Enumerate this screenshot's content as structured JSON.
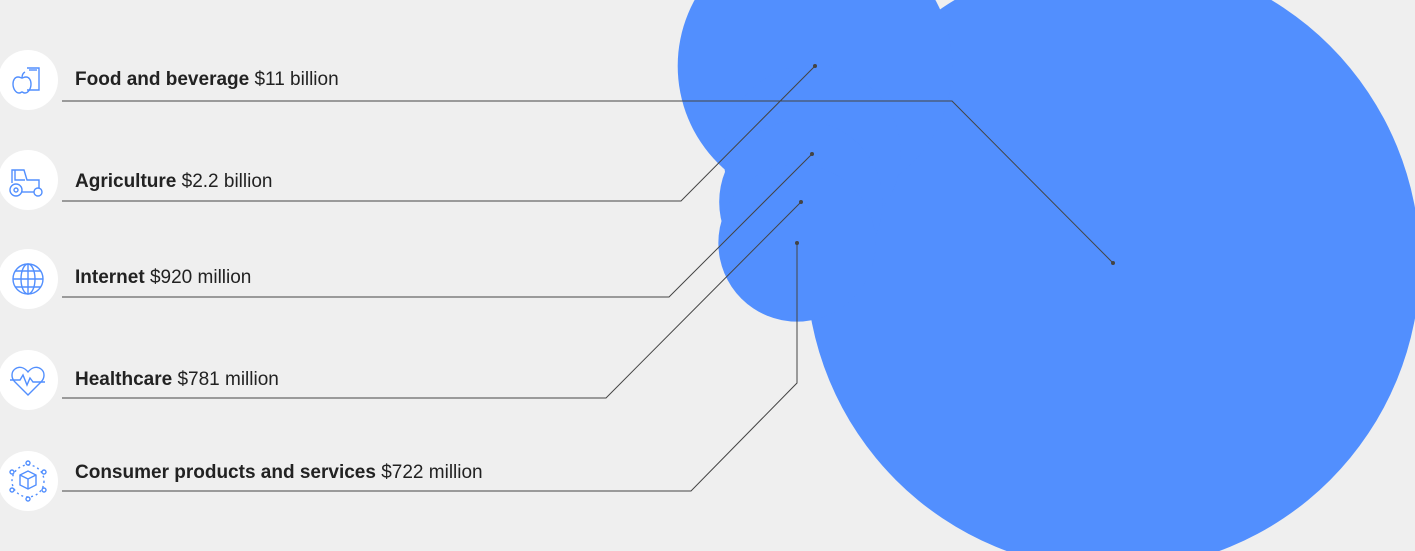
{
  "chart_data": {
    "type": "bubble",
    "colors": {
      "bubble": "#528ffe",
      "line": "#444444",
      "icon": "#528ffe",
      "icon_bg": "#ffffff"
    },
    "items": [
      {
        "name": "Food and beverage",
        "value_label": "$11 billion",
        "value": 11000,
        "icon": "food-beverage-icon"
      },
      {
        "name": "Agriculture",
        "value_label": "$2.2 billion",
        "value": 2200,
        "icon": "tractor-icon"
      },
      {
        "name": "Internet",
        "value_label": "$920 million",
        "value": 920,
        "icon": "globe-icon"
      },
      {
        "name": "Healthcare",
        "value_label": "$781 million",
        "value": 781,
        "icon": "heartbeat-icon"
      },
      {
        "name": "Consumer products and services",
        "value_label": "$722 million",
        "value": 722,
        "icon": "package-icon"
      }
    ]
  }
}
